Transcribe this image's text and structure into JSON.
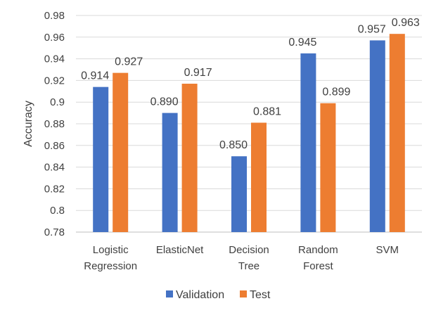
{
  "chart_data": {
    "type": "bar",
    "title": "",
    "xlabel": "",
    "ylabel": "Accuracy",
    "ylim": [
      0.78,
      0.98
    ],
    "ytick_step": 0.02,
    "yticks": [
      "0.78",
      "0.8",
      "0.82",
      "0.84",
      "0.86",
      "0.88",
      "0.9",
      "0.92",
      "0.94",
      "0.96",
      "0.98"
    ],
    "grid": true,
    "legend_position": "bottom",
    "categories": [
      [
        "Logistic",
        "Regression"
      ],
      [
        "ElasticNet"
      ],
      [
        "Decision",
        "Tree"
      ],
      [
        "Random",
        "Forest"
      ],
      [
        "SVM"
      ]
    ],
    "series": [
      {
        "name": "Validation",
        "color": "#4472C4",
        "values": [
          0.914,
          0.89,
          0.85,
          0.945,
          0.957
        ],
        "labels": [
          "0.914",
          "0.890",
          "0.850",
          "0.945",
          "0.957"
        ]
      },
      {
        "name": "Test",
        "color": "#ED7D31",
        "values": [
          0.927,
          0.917,
          0.881,
          0.899,
          0.963
        ],
        "labels": [
          "0.927",
          "0.917",
          "0.881",
          "0.899",
          "0.963"
        ]
      }
    ]
  }
}
